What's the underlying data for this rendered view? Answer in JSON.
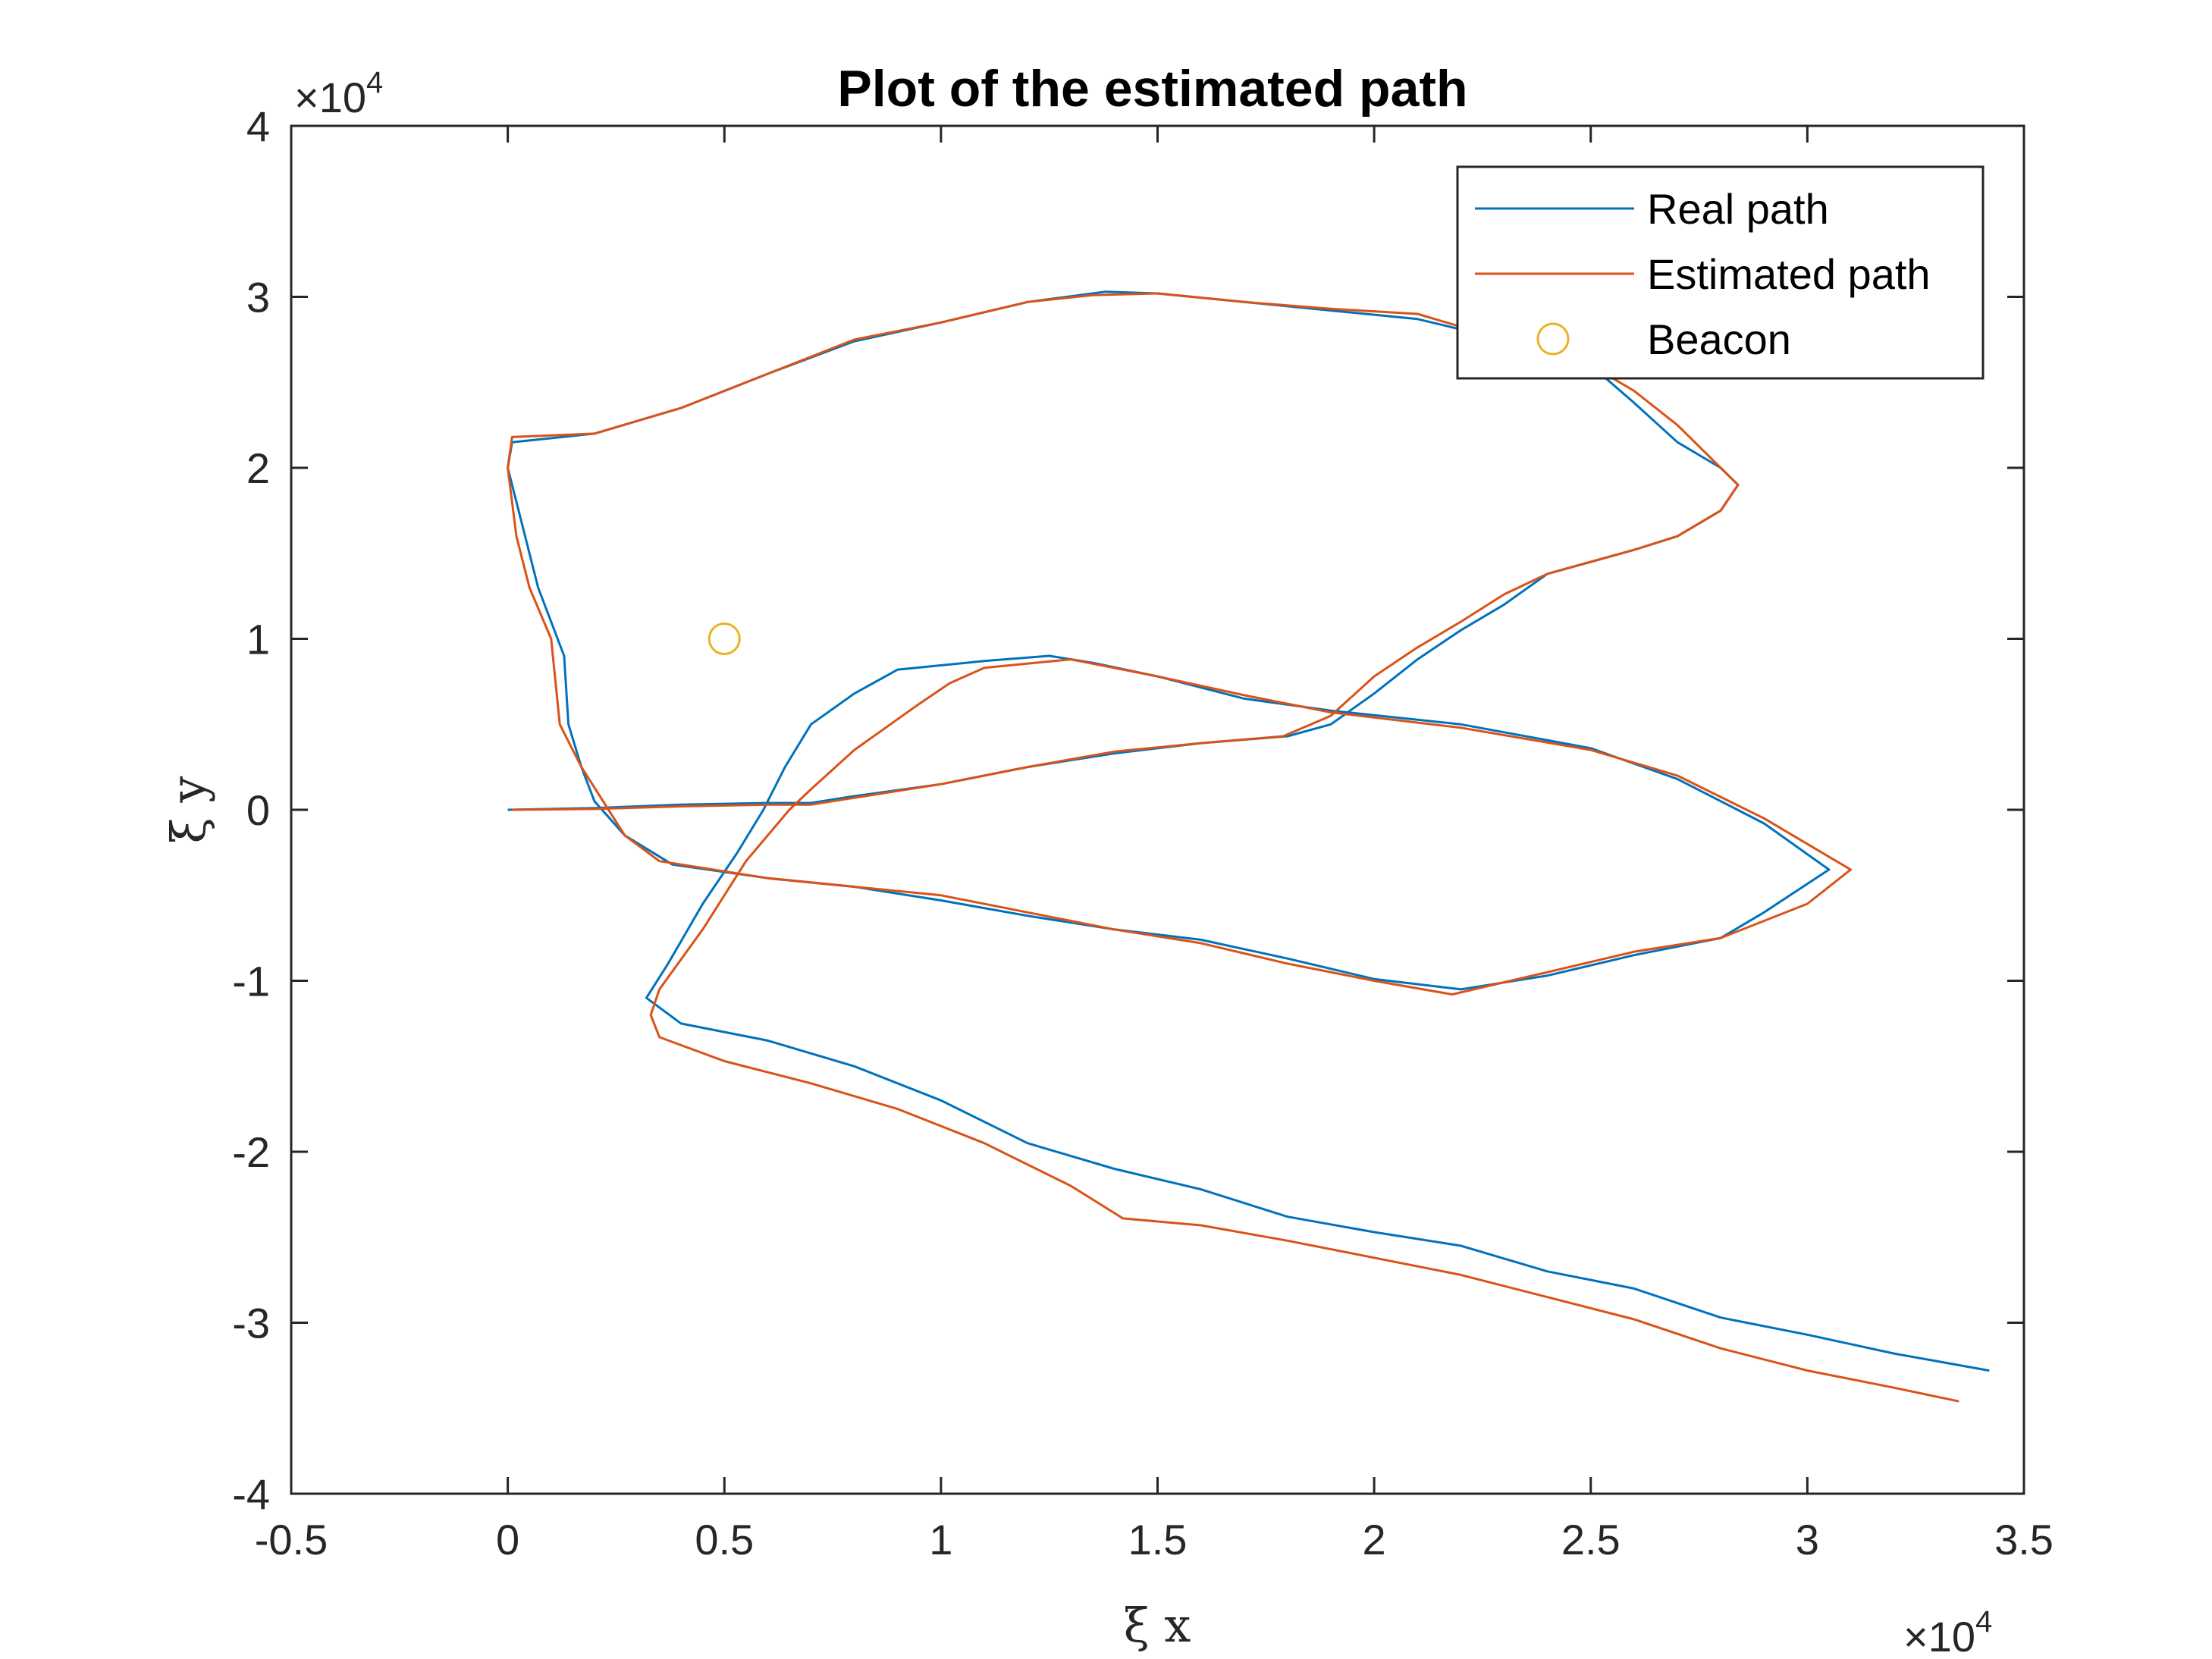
{
  "chart_data": {
    "type": "line",
    "title": "Plot of the estimated path",
    "xlabel": "ξ x",
    "ylabel": "ξ y",
    "x_exponent_label": "×10",
    "x_exponent_power": "4",
    "y_exponent_label": "×10",
    "y_exponent_power": "4",
    "xlim": [
      -5000,
      35000
    ],
    "ylim": [
      -40000,
      40000
    ],
    "x_ticks": [
      -5000,
      0,
      5000,
      10000,
      15000,
      20000,
      25000,
      30000,
      35000
    ],
    "x_tick_labels": [
      "-0.5",
      "0",
      "0.5",
      "1",
      "1.5",
      "2",
      "2.5",
      "3",
      "3.5"
    ],
    "y_ticks": [
      -40000,
      -30000,
      -20000,
      -10000,
      0,
      10000,
      20000,
      30000,
      40000
    ],
    "y_tick_labels": [
      "-4",
      "-3",
      "-2",
      "-1",
      "0",
      "1",
      "2",
      "3",
      "4"
    ],
    "grid": false,
    "legend_position": "top-right",
    "series": [
      {
        "name": "Real path",
        "color": "#0072BD",
        "marker": "none",
        "points": [
          [
            0,
            0
          ],
          [
            2000,
            100
          ],
          [
            4000,
            300
          ],
          [
            6000,
            400
          ],
          [
            7000,
            400
          ],
          [
            8000,
            800
          ],
          [
            10000,
            1500
          ],
          [
            12000,
            2500
          ],
          [
            14000,
            3300
          ],
          [
            16000,
            3900
          ],
          [
            18000,
            4300
          ],
          [
            19000,
            5000
          ],
          [
            20000,
            6800
          ],
          [
            21000,
            8800
          ],
          [
            22000,
            10500
          ],
          [
            23000,
            12000
          ],
          [
            24000,
            13800
          ],
          [
            25000,
            14500
          ],
          [
            26000,
            15200
          ],
          [
            27000,
            16000
          ],
          [
            28000,
            17500
          ],
          [
            28400,
            19000
          ],
          [
            28000,
            20000
          ],
          [
            27000,
            21500
          ],
          [
            26000,
            23800
          ],
          [
            25000,
            26000
          ],
          [
            23000,
            27500
          ],
          [
            21000,
            28700
          ],
          [
            19000,
            29200
          ],
          [
            17000,
            29700
          ],
          [
            15000,
            30200
          ],
          [
            13800,
            30300
          ],
          [
            12000,
            29700
          ],
          [
            10000,
            28500
          ],
          [
            8000,
            27400
          ],
          [
            6000,
            25500
          ],
          [
            4000,
            23500
          ],
          [
            2000,
            22000
          ],
          [
            100,
            21500
          ],
          [
            0,
            20000
          ],
          [
            400,
            16000
          ],
          [
            700,
            13000
          ],
          [
            1300,
            9000
          ],
          [
            1400,
            5000
          ],
          [
            1700,
            2500
          ],
          [
            2000,
            500
          ],
          [
            2700,
            -1500
          ],
          [
            3800,
            -3200
          ],
          [
            6000,
            -4000
          ],
          [
            8000,
            -4500
          ],
          [
            10000,
            -5300
          ],
          [
            12000,
            -6200
          ],
          [
            14000,
            -7000
          ],
          [
            16000,
            -7600
          ],
          [
            18000,
            -8700
          ],
          [
            20000,
            -9900
          ],
          [
            22000,
            -10500
          ],
          [
            24000,
            -9700
          ],
          [
            26000,
            -8500
          ],
          [
            28000,
            -7500
          ],
          [
            29000,
            -6000
          ],
          [
            30500,
            -3500
          ],
          [
            29000,
            -800
          ],
          [
            27000,
            1800
          ],
          [
            25000,
            3600
          ],
          [
            22000,
            5000
          ],
          [
            19000,
            5800
          ],
          [
            17000,
            6500
          ],
          [
            15000,
            7800
          ],
          [
            13500,
            8600
          ],
          [
            12500,
            9000
          ],
          [
            11000,
            8700
          ],
          [
            9000,
            8200
          ],
          [
            8000,
            6800
          ],
          [
            7000,
            5000
          ],
          [
            6400,
            2500
          ],
          [
            5900,
            0
          ],
          [
            5300,
            -2500
          ],
          [
            4500,
            -5500
          ],
          [
            3700,
            -9000
          ],
          [
            3200,
            -11000
          ],
          [
            4000,
            -12500
          ],
          [
            6000,
            -13500
          ],
          [
            8000,
            -15000
          ],
          [
            10000,
            -17000
          ],
          [
            12000,
            -19500
          ],
          [
            14000,
            -21000
          ],
          [
            16000,
            -22200
          ],
          [
            18000,
            -23800
          ],
          [
            20000,
            -24700
          ],
          [
            22000,
            -25500
          ],
          [
            24000,
            -27000
          ],
          [
            26000,
            -28000
          ],
          [
            28000,
            -29700
          ],
          [
            30000,
            -30700
          ],
          [
            32000,
            -31800
          ],
          [
            34200,
            -32800
          ]
        ]
      },
      {
        "name": "Estimated path",
        "color": "#D95319",
        "marker": "none",
        "points": [
          [
            100,
            0
          ],
          [
            2000,
            50
          ],
          [
            4000,
            200
          ],
          [
            6000,
            300
          ],
          [
            7000,
            300
          ],
          [
            8000,
            700
          ],
          [
            10000,
            1500
          ],
          [
            12000,
            2500
          ],
          [
            14000,
            3400
          ],
          [
            16000,
            3900
          ],
          [
            17900,
            4300
          ],
          [
            19000,
            5500
          ],
          [
            20000,
            7800
          ],
          [
            21000,
            9500
          ],
          [
            22000,
            11000
          ],
          [
            23000,
            12600
          ],
          [
            24000,
            13800
          ],
          [
            25000,
            14500
          ],
          [
            26000,
            15200
          ],
          [
            27000,
            16000
          ],
          [
            28000,
            17500
          ],
          [
            28400,
            19000
          ],
          [
            28000,
            20000
          ],
          [
            27000,
            22500
          ],
          [
            26000,
            24500
          ],
          [
            25000,
            26000
          ],
          [
            23000,
            27500
          ],
          [
            21000,
            29000
          ],
          [
            19000,
            29300
          ],
          [
            17000,
            29700
          ],
          [
            15000,
            30200
          ],
          [
            13500,
            30100
          ],
          [
            12000,
            29700
          ],
          [
            10000,
            28500
          ],
          [
            8000,
            27500
          ],
          [
            6000,
            25500
          ],
          [
            4000,
            23500
          ],
          [
            2000,
            22000
          ],
          [
            100,
            21800
          ],
          [
            0,
            20000
          ],
          [
            200,
            16000
          ],
          [
            500,
            13000
          ],
          [
            1000,
            10000
          ],
          [
            1200,
            5000
          ],
          [
            1700,
            2500
          ],
          [
            2200,
            500
          ],
          [
            2700,
            -1500
          ],
          [
            3500,
            -3000
          ],
          [
            6000,
            -4000
          ],
          [
            8000,
            -4500
          ],
          [
            10000,
            -5000
          ],
          [
            12000,
            -6000
          ],
          [
            14000,
            -7000
          ],
          [
            16000,
            -7800
          ],
          [
            18000,
            -9000
          ],
          [
            20000,
            -10000
          ],
          [
            21800,
            -10800
          ],
          [
            24000,
            -9500
          ],
          [
            26000,
            -8300
          ],
          [
            28000,
            -7500
          ],
          [
            30000,
            -5500
          ],
          [
            31000,
            -3500
          ],
          [
            29000,
            -500
          ],
          [
            27000,
            2000
          ],
          [
            25000,
            3500
          ],
          [
            22000,
            4800
          ],
          [
            19000,
            5700
          ],
          [
            17000,
            6700
          ],
          [
            15000,
            7800
          ],
          [
            13000,
            8800
          ],
          [
            11000,
            8300
          ],
          [
            10200,
            7400
          ],
          [
            9500,
            6200
          ],
          [
            8000,
            3500
          ],
          [
            7000,
            1200
          ],
          [
            6500,
            0
          ],
          [
            5500,
            -3000
          ],
          [
            4500,
            -7000
          ],
          [
            3500,
            -10500
          ],
          [
            3300,
            -12000
          ],
          [
            3500,
            -13300
          ],
          [
            5000,
            -14700
          ],
          [
            7000,
            -16000
          ],
          [
            9000,
            -17500
          ],
          [
            11000,
            -19500
          ],
          [
            13000,
            -22000
          ],
          [
            14200,
            -23900
          ],
          [
            16000,
            -24300
          ],
          [
            18000,
            -25200
          ],
          [
            20000,
            -26200
          ],
          [
            22000,
            -27200
          ],
          [
            24000,
            -28500
          ],
          [
            26000,
            -29800
          ],
          [
            28000,
            -31500
          ],
          [
            30000,
            -32800
          ],
          [
            32000,
            -33800
          ],
          [
            33500,
            -34600
          ]
        ]
      },
      {
        "name": "Beacon",
        "color": "#EDB120",
        "marker": "circle",
        "points": [
          [
            5000,
            10000
          ]
        ]
      }
    ]
  }
}
